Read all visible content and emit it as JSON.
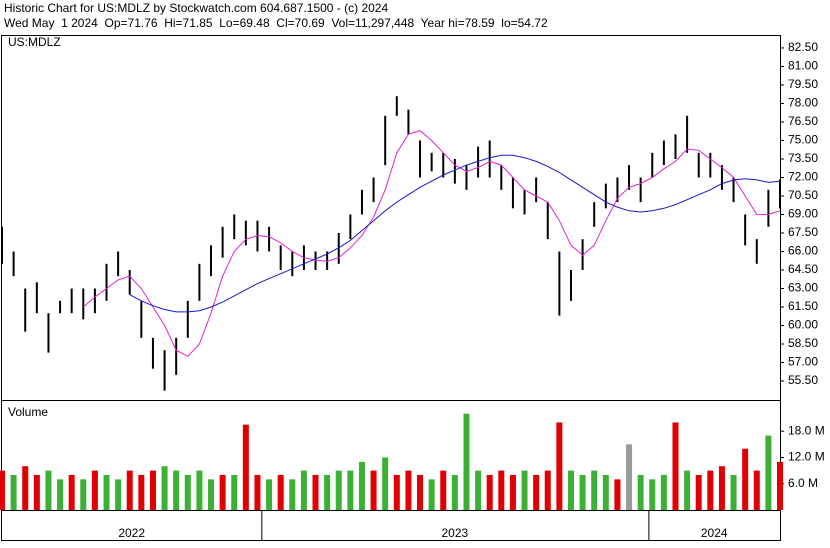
{
  "header": {
    "line1": "Historic Chart for US:MDLZ by Stockwatch.com 604.687.1500 - (c) 2024",
    "line2": "Wed May  1 2024  Op=71.76  Hi=71.85  Lo=69.48  Cl=70.69  Vol=11,297,448  Year hi=78.59  lo=54.72"
  },
  "chart_data": [
    {
      "type": "hilo",
      "label": "US:MDLZ",
      "color": "#000000",
      "x": [
        2022.33,
        2022.36,
        2022.39,
        2022.42,
        2022.45,
        2022.48,
        2022.51,
        2022.54,
        2022.57,
        2022.6,
        2022.63,
        2022.66,
        2022.69,
        2022.72,
        2022.75,
        2022.78,
        2022.81,
        2022.84,
        2022.87,
        2022.9,
        2022.93,
        2022.96,
        2022.99,
        2023.02,
        2023.05,
        2023.08,
        2023.11,
        2023.14,
        2023.17,
        2023.2,
        2023.23,
        2023.26,
        2023.29,
        2023.32,
        2023.35,
        2023.38,
        2023.41,
        2023.44,
        2023.47,
        2023.5,
        2023.53,
        2023.56,
        2023.59,
        2023.62,
        2023.65,
        2023.68,
        2023.71,
        2023.74,
        2023.77,
        2023.8,
        2023.83,
        2023.86,
        2023.89,
        2023.92,
        2023.95,
        2023.98,
        2024.01,
        2024.04,
        2024.07,
        2024.1,
        2024.13,
        2024.16,
        2024.19,
        2024.22,
        2024.25,
        2024.28,
        2024.31,
        2024.34
      ],
      "high": [
        68,
        66,
        63,
        63.5,
        61,
        62,
        63,
        63,
        63,
        65,
        66,
        64.5,
        62,
        59,
        58,
        59,
        62,
        65,
        66.5,
        68,
        69,
        68.5,
        68.5,
        68,
        66.5,
        66,
        66.5,
        66,
        66,
        67.5,
        69,
        71,
        72,
        77,
        78.59,
        77.5,
        75,
        74,
        74,
        73.5,
        73,
        74.5,
        75,
        73,
        72,
        71,
        72,
        70,
        66,
        64.5,
        67,
        70,
        71.5,
        72,
        73,
        72,
        74,
        75,
        75.5,
        77,
        74,
        74,
        73,
        72,
        69,
        67,
        71,
        71.85
      ],
      "low": [
        65,
        64,
        59.5,
        61,
        57.8,
        61,
        61,
        60.5,
        61,
        62,
        64,
        62.5,
        59,
        56.5,
        54.72,
        56,
        59,
        62,
        64,
        65.5,
        67,
        66.5,
        66,
        66,
        64.5,
        64,
        64.5,
        64.5,
        64.5,
        65,
        67,
        69,
        70,
        73,
        77,
        75.5,
        72,
        72.5,
        72,
        71.5,
        71,
        72,
        72,
        71,
        69.5,
        69,
        70,
        67,
        60.8,
        62,
        64.5,
        68,
        69.5,
        70,
        71,
        70,
        72,
        73,
        73.5,
        74,
        72,
        72,
        71,
        70,
        66.5,
        65,
        68,
        69.48
      ],
      "moving_averages": [
        {
          "color": "#e020d8",
          "values": [
            null,
            null,
            null,
            null,
            null,
            null,
            null,
            61.5,
            62.3,
            63,
            63.7,
            64,
            63,
            61.5,
            60,
            58,
            57.5,
            58.5,
            61,
            64,
            66,
            67,
            67.3,
            67.2,
            66.7,
            66,
            65.5,
            65.3,
            65.2,
            65.5,
            66.3,
            67.3,
            68.8,
            71,
            74,
            75.5,
            75.8,
            75,
            74,
            73,
            72.5,
            72.8,
            73.3,
            73,
            72,
            71,
            70.5,
            70,
            68.5,
            66.5,
            65.7,
            66.5,
            68.5,
            70.3,
            71.2,
            71.5,
            72,
            72.7,
            73.3,
            74.3,
            74.2,
            73.5,
            72.8,
            72,
            70.5,
            69,
            69,
            69.3
          ]
        },
        {
          "color": "#1818c8",
          "values": [
            null,
            null,
            null,
            null,
            null,
            null,
            null,
            null,
            null,
            null,
            null,
            62.5,
            62,
            61.6,
            61.3,
            61.1,
            61.1,
            61.2,
            61.5,
            61.9,
            62.4,
            62.9,
            63.4,
            63.8,
            64.2,
            64.6,
            65,
            65.4,
            65.8,
            66.3,
            66.9,
            67.7,
            68.5,
            69.3,
            70,
            70.6,
            71.2,
            71.7,
            72.2,
            72.6,
            73,
            73.3,
            73.6,
            73.8,
            73.8,
            73.6,
            73.3,
            72.9,
            72.4,
            71.8,
            71.2,
            70.6,
            70,
            69.6,
            69.3,
            69.2,
            69.3,
            69.5,
            69.8,
            70.2,
            70.6,
            71,
            71.5,
            71.8,
            71.9,
            71.8,
            71.6,
            71.7
          ]
        }
      ],
      "xlim": [
        2022.33,
        2024.34
      ],
      "xticks": [
        2022,
        2023,
        2024
      ],
      "ylim": [
        53.96,
        83.47
      ],
      "yticks": [
        {
          "value": 55.5,
          "label": "55.50"
        },
        {
          "value": 57,
          "label": "57.00"
        },
        {
          "value": 58.5,
          "label": "58.50"
        },
        {
          "value": 60,
          "label": "60.00"
        },
        {
          "value": 61.5,
          "label": "61.50"
        },
        {
          "value": 63,
          "label": "63.00"
        },
        {
          "value": 64.5,
          "label": "64.50"
        },
        {
          "value": 66,
          "label": "66.00"
        },
        {
          "value": 67.5,
          "label": "67.50"
        },
        {
          "value": 69,
          "label": "69.00"
        },
        {
          "value": 70.5,
          "label": "70.50"
        },
        {
          "value": 72,
          "label": "72.00"
        },
        {
          "value": 73.5,
          "label": "73.50"
        },
        {
          "value": 75,
          "label": "75.00"
        },
        {
          "value": 76.5,
          "label": "76.50"
        },
        {
          "value": 78,
          "label": "78.00"
        },
        {
          "value": 79.5,
          "label": "79.50"
        },
        {
          "value": 81,
          "label": "81.00"
        },
        {
          "value": 82.5,
          "label": "82.50"
        }
      ]
    },
    {
      "type": "bar",
      "label": "Volume",
      "values": [
        9,
        8,
        10,
        8,
        9,
        7,
        8,
        7,
        9,
        8,
        7,
        9,
        8,
        9,
        10,
        9,
        8,
        9,
        7,
        8,
        8,
        19.5,
        8,
        7,
        8,
        7,
        9,
        8,
        8,
        9,
        9,
        11,
        9,
        12,
        8,
        9,
        8,
        7,
        9,
        8,
        22,
        9,
        8,
        9,
        8,
        9,
        8,
        9,
        20,
        9,
        8,
        9,
        8,
        7,
        15,
        8,
        7,
        8,
        20,
        9,
        8,
        9,
        10,
        8,
        14,
        9,
        17,
        11
      ],
      "colors": [
        "#e00000",
        "#3cb034",
        "#e00000",
        "#e00000",
        "#3cb034",
        "#3cb034",
        "#e00000",
        "#3cb034",
        "#e00000",
        "#3cb034",
        "#3cb034",
        "#e00000",
        "#e00000",
        "#e00000",
        "#3cb034",
        "#3cb034",
        "#3cb034",
        "#3cb034",
        "#3cb034",
        "#e00000",
        "#3cb034",
        "#e00000",
        "#e00000",
        "#3cb034",
        "#e00000",
        "#3cb034",
        "#3cb034",
        "#e00000",
        "#3cb034",
        "#3cb034",
        "#3cb034",
        "#3cb034",
        "#e00000",
        "#3cb034",
        "#e00000",
        "#e00000",
        "#e00000",
        "#3cb034",
        "#e00000",
        "#3cb034",
        "#3cb034",
        "#3cb034",
        "#e00000",
        "#e00000",
        "#e00000",
        "#3cb034",
        "#e00000",
        "#e00000",
        "#e00000",
        "#3cb034",
        "#3cb034",
        "#3cb034",
        "#3cb034",
        "#e00000",
        "#999999",
        "#3cb034",
        "#3cb034",
        "#3cb034",
        "#e00000",
        "#3cb034",
        "#e00000",
        "#e00000",
        "#e00000",
        "#3cb034",
        "#e00000",
        "#e00000",
        "#3cb034",
        "#e00000"
      ],
      "ylim": [
        0,
        24.9
      ],
      "yticks": [
        {
          "value": 6,
          "label": "6.0 M"
        },
        {
          "value": 12,
          "label": "12.0 M"
        },
        {
          "value": 18,
          "label": "18.0 M"
        }
      ]
    }
  ]
}
